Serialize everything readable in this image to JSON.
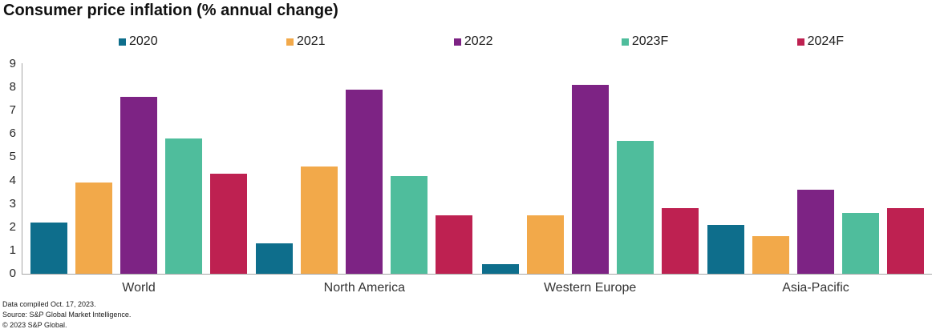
{
  "title": "Consumer price inflation (% annual change)",
  "footer": {
    "line1": "Data compiled Oct. 17, 2023.",
    "line2": "Source: S&P Global Market Intelligence.",
    "line3": "© 2023 S&P Global."
  },
  "axis_color": "#a6a6a6",
  "chart_data": {
    "type": "bar",
    "title": "Consumer price inflation (% annual change)",
    "categories": [
      "World",
      "North America",
      "Western Europe",
      "Asia-Pacific"
    ],
    "series": [
      {
        "name": "2020",
        "color": "#0e6e8c",
        "values": [
          2.2,
          1.3,
          0.4,
          2.1
        ]
      },
      {
        "name": "2021",
        "color": "#f2a94a",
        "values": [
          3.9,
          4.6,
          2.5,
          1.6
        ]
      },
      {
        "name": "2022",
        "color": "#7d2384",
        "values": [
          7.6,
          7.9,
          8.1,
          3.6
        ]
      },
      {
        "name": "2023F",
        "color": "#4fbd9c",
        "values": [
          5.8,
          4.2,
          5.7,
          2.6
        ]
      },
      {
        "name": "2024F",
        "color": "#be2151",
        "values": [
          4.3,
          2.5,
          2.8,
          2.8
        ]
      }
    ],
    "xlabel": "",
    "ylabel": "",
    "ylim": [
      0,
      9
    ],
    "yticks": [
      "0",
      "1",
      "2",
      "3",
      "4",
      "5",
      "6",
      "7",
      "8",
      "9"
    ],
    "grid": false,
    "legend_position": "top"
  }
}
